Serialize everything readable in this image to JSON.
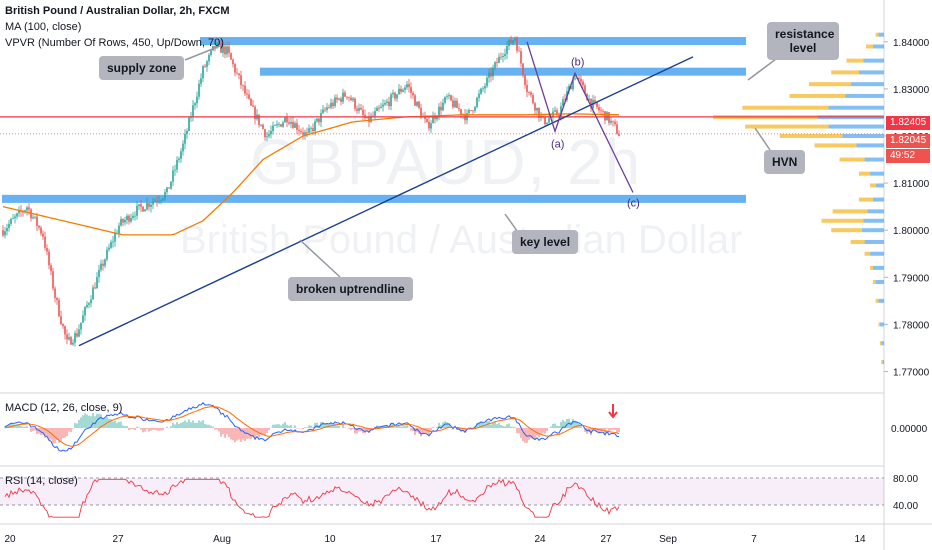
{
  "header": {
    "title": "British Pound / Australian Dollar, 2h, FXCM",
    "ma": "MA (100, close)",
    "vpvr": "VPVR (Number Of Rows, 450, Up/Down, 70)",
    "macd": "MACD (12, 26, close, 9)",
    "rsi": "RSI (14, close)"
  },
  "watermark": {
    "symbol": "GBPAUD, 2h",
    "name": "British Pound / Australian Dollar"
  },
  "annotations": {
    "supply_zone": "supply zone",
    "resistance": "resistance level",
    "hvn": "HVN",
    "key_level": "key level",
    "broken_uptrend": "broken uptrendline",
    "wave_a": "(a)",
    "wave_b": "(b)",
    "wave_c": "(c)"
  },
  "price_tags": {
    "level": "1.82405",
    "last": "1.82045",
    "countdown": "49:52"
  },
  "colors": {
    "up": "#26a69a",
    "down": "#ef5350",
    "zone": "#4aa3f0",
    "ma": "#f57c00",
    "trendline": "#1c3f94",
    "wave": "#6a3d9a",
    "level_line": "#f23645",
    "vp_up": "#f7c043",
    "vp_down": "#5aa9f0"
  },
  "chart_data": {
    "type": "candlestick",
    "title": "British Pound / Australian Dollar, 2h, FXCM",
    "x_ticks": [
      "20",
      "27",
      "Aug",
      "10",
      "17",
      "24",
      "27",
      "Sep",
      "7",
      "14"
    ],
    "y_ticks": [
      "1.84000",
      "1.83000",
      "1.82000",
      "1.81000",
      "1.80000",
      "1.79000",
      "1.78000",
      "1.77000"
    ],
    "ylim": [
      1.7665,
      1.8425
    ],
    "macd_ticks": [
      "0.00000"
    ],
    "rsi_ticks": [
      "80.00",
      "40.00"
    ],
    "price_path": [
      {
        "i": 0,
        "p": 1.8
      },
      {
        "i": 12,
        "p": 1.805
      },
      {
        "i": 20,
        "p": 1.799
      },
      {
        "i": 26,
        "p": 1.786
      },
      {
        "i": 32,
        "p": 1.776
      },
      {
        "i": 37,
        "p": 1.778
      },
      {
        "i": 42,
        "p": 1.784
      },
      {
        "i": 50,
        "p": 1.793
      },
      {
        "i": 58,
        "p": 1.801
      },
      {
        "i": 66,
        "p": 1.804
      },
      {
        "i": 74,
        "p": 1.806
      },
      {
        "i": 82,
        "p": 1.808
      },
      {
        "i": 90,
        "p": 1.818
      },
      {
        "i": 95,
        "p": 1.826
      },
      {
        "i": 100,
        "p": 1.834
      },
      {
        "i": 106,
        "p": 1.839
      },
      {
        "i": 112,
        "p": 1.838
      },
      {
        "i": 118,
        "p": 1.832
      },
      {
        "i": 124,
        "p": 1.826
      },
      {
        "i": 132,
        "p": 1.82
      },
      {
        "i": 142,
        "p": 1.824
      },
      {
        "i": 152,
        "p": 1.82
      },
      {
        "i": 162,
        "p": 1.826
      },
      {
        "i": 172,
        "p": 1.829
      },
      {
        "i": 182,
        "p": 1.823
      },
      {
        "i": 192,
        "p": 1.827
      },
      {
        "i": 202,
        "p": 1.831
      },
      {
        "i": 212,
        "p": 1.822
      },
      {
        "i": 222,
        "p": 1.828
      },
      {
        "i": 232,
        "p": 1.824
      },
      {
        "i": 240,
        "p": 1.83
      },
      {
        "i": 250,
        "p": 1.838
      },
      {
        "i": 256,
        "p": 1.841
      },
      {
        "i": 262,
        "p": 1.83
      },
      {
        "i": 270,
        "p": 1.823
      },
      {
        "i": 278,
        "p": 1.825
      },
      {
        "i": 286,
        "p": 1.833
      },
      {
        "i": 294,
        "p": 1.827
      },
      {
        "i": 302,
        "p": 1.824
      },
      {
        "i": 308,
        "p": 1.8205
      }
    ],
    "ma100_path": [
      {
        "i": 0,
        "p": 1.805
      },
      {
        "i": 30,
        "p": 1.802
      },
      {
        "i": 60,
        "p": 1.799
      },
      {
        "i": 85,
        "p": 1.799
      },
      {
        "i": 100,
        "p": 1.802
      },
      {
        "i": 115,
        "p": 1.808
      },
      {
        "i": 130,
        "p": 1.815
      },
      {
        "i": 150,
        "p": 1.82
      },
      {
        "i": 175,
        "p": 1.823
      },
      {
        "i": 200,
        "p": 1.824
      },
      {
        "i": 230,
        "p": 1.8245
      },
      {
        "i": 260,
        "p": 1.8245
      },
      {
        "i": 285,
        "p": 1.8247
      },
      {
        "i": 308,
        "p": 1.8245
      }
    ],
    "supply_zone": [
      1.84,
      1.841
    ],
    "resistance_zone": [
      1.8335,
      1.8345
    ],
    "key_level_zone": [
      1.8065,
      1.8075
    ],
    "level_line": 1.82405,
    "last_price": 1.82045,
    "uptrend_line": [
      {
        "i": 38,
        "p": 1.7755
      },
      {
        "i": 345,
        "p": 1.8368
      }
    ],
    "wave": [
      {
        "label": "(a)",
        "i": 276,
        "p": 1.821
      },
      {
        "label": "(b)",
        "i": 286,
        "p": 1.8333
      },
      {
        "label": "(c)",
        "i": 315,
        "p": 1.808
      }
    ],
    "volume_profile": [
      {
        "p": 1.8415,
        "up": 2,
        "down": 4
      },
      {
        "p": 1.839,
        "up": 5,
        "down": 8
      },
      {
        "p": 1.836,
        "up": 12,
        "down": 15
      },
      {
        "p": 1.8335,
        "up": 20,
        "down": 18
      },
      {
        "p": 1.831,
        "up": 30,
        "down": 24
      },
      {
        "p": 1.8285,
        "up": 40,
        "down": 28
      },
      {
        "p": 1.826,
        "up": 62,
        "down": 40
      },
      {
        "p": 1.824,
        "up": 75,
        "down": 48
      },
      {
        "p": 1.822,
        "up": 60,
        "down": 40
      },
      {
        "p": 1.82,
        "up": 45,
        "down": 30
      },
      {
        "p": 1.818,
        "up": 30,
        "down": 20
      },
      {
        "p": 1.815,
        "up": 18,
        "down": 14
      },
      {
        "p": 1.812,
        "up": 8,
        "down": 10
      },
      {
        "p": 1.8095,
        "up": 4,
        "down": 6
      },
      {
        "p": 1.8065,
        "up": 10,
        "down": 8
      },
      {
        "p": 1.804,
        "up": 25,
        "down": 12
      },
      {
        "p": 1.802,
        "up": 30,
        "down": 15
      },
      {
        "p": 1.8,
        "up": 22,
        "down": 16
      },
      {
        "p": 1.7975,
        "up": 10,
        "down": 14
      },
      {
        "p": 1.795,
        "up": 4,
        "down": 10
      },
      {
        "p": 1.792,
        "up": 2,
        "down": 8
      },
      {
        "p": 1.789,
        "up": 2,
        "down": 6
      },
      {
        "p": 1.785,
        "up": 2,
        "down": 4
      },
      {
        "p": 1.78,
        "up": 1,
        "down": 3
      },
      {
        "p": 1.776,
        "up": 1,
        "down": 2
      },
      {
        "p": 1.772,
        "up": 1,
        "down": 1
      }
    ]
  }
}
